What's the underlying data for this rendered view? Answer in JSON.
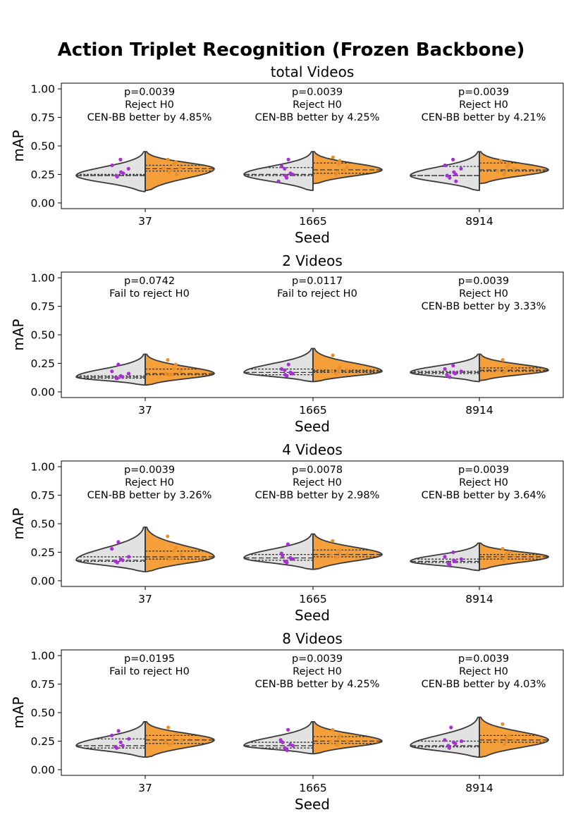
{
  "figure": {
    "suptitle": "Action Triplet Recognition (Frozen Backbone)"
  },
  "colors": {
    "baseline": "#e2e2e2",
    "cenbb": "#f5a03a",
    "baseline_points": "#a62fd6",
    "cenbb_points": "#e8902c",
    "outline": "#3a3a3a"
  },
  "chart_data": [
    {
      "type": "violin",
      "title": "total Videos",
      "xlabel": "Seed",
      "ylabel": "mAP",
      "ylim": [
        -0.05,
        1.05
      ],
      "yticks": [
        0.0,
        0.25,
        0.5,
        0.75,
        1.0
      ],
      "ytick_labels": [
        "0.00",
        "0.25",
        "0.50",
        "0.75",
        "1.00"
      ],
      "categories": [
        "37",
        "1665",
        "8914"
      ],
      "groups": [
        {
          "seed": "37",
          "annotation": [
            "p=0.0039",
            "Reject H0",
            "CEN-BB better by 4.85%"
          ],
          "left": {
            "range": [
              0.1,
              0.45
            ],
            "median": 0.24,
            "q1": 0.24,
            "q3": 0.25,
            "points": [
              0.38,
              0.33,
              0.3,
              0.27,
              0.26,
              0.24,
              0.23
            ]
          },
          "right": {
            "range": [
              0.11,
              0.45
            ],
            "median": 0.3,
            "q1": 0.28,
            "q3": 0.33,
            "points": [
              0.38,
              0.36,
              0.34,
              0.31,
              0.3,
              0.29,
              0.27,
              0.25
            ]
          }
        },
        {
          "seed": "1665",
          "annotation": [
            "p=0.0039",
            "Reject H0",
            "CEN-BB better by 4.25%"
          ],
          "left": {
            "range": [
              0.11,
              0.45
            ],
            "median": 0.25,
            "q1": 0.24,
            "q3": 0.31,
            "points": [
              0.38,
              0.32,
              0.3,
              0.26,
              0.25,
              0.24,
              0.22,
              0.19
            ]
          },
          "right": {
            "range": [
              0.17,
              0.45
            ],
            "median": 0.29,
            "q1": 0.26,
            "q3": 0.35,
            "points": [
              0.4,
              0.37,
              0.34,
              0.31,
              0.29,
              0.27,
              0.25
            ]
          }
        },
        {
          "seed": "8914",
          "annotation": [
            "p=0.0039",
            "Reject H0",
            "CEN-BB better by 4.21%"
          ],
          "left": {
            "range": [
              0.11,
              0.45
            ],
            "median": 0.24,
            "q1": 0.24,
            "q3": 0.32,
            "points": [
              0.38,
              0.33,
              0.3,
              0.27,
              0.25,
              0.24,
              0.22,
              0.19
            ]
          },
          "right": {
            "range": [
              0.17,
              0.45
            ],
            "median": 0.29,
            "q1": 0.28,
            "q3": 0.35,
            "points": [
              0.37,
              0.34,
              0.32,
              0.3,
              0.28,
              0.27,
              0.25
            ]
          }
        }
      ]
    },
    {
      "type": "violin",
      "title": "2 Videos",
      "xlabel": "Seed",
      "ylabel": "mAP",
      "ylim": [
        -0.05,
        1.05
      ],
      "yticks": [
        0.0,
        0.25,
        0.5,
        0.75,
        1.0
      ],
      "ytick_labels": [
        "0.00",
        "0.25",
        "0.50",
        "0.75",
        "1.00"
      ],
      "categories": [
        "37",
        "1665",
        "8914"
      ],
      "groups": [
        {
          "seed": "37",
          "annotation": [
            "p=0.0742",
            "Fail to reject H0"
          ],
          "left": {
            "range": [
              0.06,
              0.33
            ],
            "median": 0.13,
            "q1": 0.12,
            "q3": 0.14,
            "points": [
              0.24,
              0.18,
              0.16,
              0.14,
              0.13,
              0.12,
              0.12
            ]
          },
          "right": {
            "range": [
              0.06,
              0.33
            ],
            "median": 0.16,
            "q1": 0.15,
            "q3": 0.2,
            "points": [
              0.28,
              0.24,
              0.2,
              0.18,
              0.16,
              0.15,
              0.15
            ]
          }
        },
        {
          "seed": "1665",
          "annotation": [
            "p=0.0117",
            "Fail to reject H0"
          ],
          "left": {
            "range": [
              0.09,
              0.38
            ],
            "median": 0.17,
            "q1": 0.15,
            "q3": 0.2,
            "points": [
              0.24,
              0.2,
              0.19,
              0.17,
              0.16,
              0.15,
              0.14
            ]
          },
          "right": {
            "range": [
              0.09,
              0.38
            ],
            "median": 0.18,
            "q1": 0.17,
            "q3": 0.19,
            "points": [
              0.32,
              0.22,
              0.2,
              0.19,
              0.18,
              0.17,
              0.16
            ]
          }
        },
        {
          "seed": "8914",
          "annotation": [
            "p=0.0039",
            "Reject H0",
            "CEN-BB better by 3.33%"
          ],
          "left": {
            "range": [
              0.09,
              0.33
            ],
            "median": 0.17,
            "q1": 0.16,
            "q3": 0.18,
            "points": [
              0.23,
              0.2,
              0.18,
              0.17,
              0.16,
              0.15,
              0.13
            ]
          },
          "right": {
            "range": [
              0.1,
              0.33
            ],
            "median": 0.19,
            "q1": 0.18,
            "q3": 0.21,
            "points": [
              0.28,
              0.22,
              0.21,
              0.2,
              0.19,
              0.18,
              0.17
            ]
          }
        }
      ]
    },
    {
      "type": "violin",
      "title": "4 Videos",
      "xlabel": "Seed",
      "ylabel": "mAP",
      "ylim": [
        -0.05,
        1.05
      ],
      "yticks": [
        0.0,
        0.25,
        0.5,
        0.75,
        1.0
      ],
      "ytick_labels": [
        "0.00",
        "0.25",
        "0.50",
        "0.75",
        "1.00"
      ],
      "categories": [
        "37",
        "1665",
        "8914"
      ],
      "groups": [
        {
          "seed": "37",
          "annotation": [
            "p=0.0039",
            "Reject H0",
            "CEN-BB better by 3.26%"
          ],
          "left": {
            "range": [
              0.08,
              0.47
            ],
            "median": 0.18,
            "q1": 0.17,
            "q3": 0.21,
            "points": [
              0.34,
              0.28,
              0.21,
              0.19,
              0.18,
              0.17,
              0.16
            ]
          },
          "right": {
            "range": [
              0.08,
              0.47
            ],
            "median": 0.21,
            "q1": 0.19,
            "q3": 0.26,
            "points": [
              0.39,
              0.29,
              0.26,
              0.23,
              0.21,
              0.2,
              0.19
            ]
          }
        },
        {
          "seed": "1665",
          "annotation": [
            "p=0.0078",
            "Reject H0",
            "CEN-BB better by 2.98%"
          ],
          "left": {
            "range": [
              0.1,
              0.41
            ],
            "median": 0.2,
            "q1": 0.18,
            "q3": 0.23,
            "points": [
              0.32,
              0.24,
              0.22,
              0.2,
              0.19,
              0.17,
              0.16
            ]
          },
          "right": {
            "range": [
              0.1,
              0.41
            ],
            "median": 0.23,
            "q1": 0.21,
            "q3": 0.27,
            "points": [
              0.35,
              0.27,
              0.25,
              0.23,
              0.22,
              0.21,
              0.2
            ]
          }
        },
        {
          "seed": "8914",
          "annotation": [
            "p=0.0039",
            "Reject H0",
            "CEN-BB better by 3.64%"
          ],
          "left": {
            "range": [
              0.09,
              0.33
            ],
            "median": 0.17,
            "q1": 0.16,
            "q3": 0.19,
            "points": [
              0.25,
              0.21,
              0.19,
              0.18,
              0.17,
              0.15,
              0.14
            ]
          },
          "right": {
            "range": [
              0.1,
              0.33
            ],
            "median": 0.21,
            "q1": 0.19,
            "q3": 0.23,
            "points": [
              0.28,
              0.25,
              0.23,
              0.22,
              0.21,
              0.2,
              0.18
            ]
          }
        }
      ]
    },
    {
      "type": "violin",
      "title": "8 Videos",
      "xlabel": "Seed",
      "ylabel": "mAP",
      "ylim": [
        -0.05,
        1.05
      ],
      "yticks": [
        0.0,
        0.25,
        0.5,
        0.75,
        1.0
      ],
      "ytick_labels": [
        "0.00",
        "0.25",
        "0.50",
        "0.75",
        "1.00"
      ],
      "categories": [
        "37",
        "1665",
        "8914"
      ],
      "groups": [
        {
          "seed": "37",
          "annotation": [
            "p=0.0195",
            "Fail to reject H0"
          ],
          "left": {
            "range": [
              0.11,
              0.42
            ],
            "median": 0.21,
            "q1": 0.19,
            "q3": 0.27,
            "points": [
              0.34,
              0.3,
              0.27,
              0.24,
              0.21,
              0.2,
              0.19
            ]
          },
          "right": {
            "range": [
              0.11,
              0.42
            ],
            "median": 0.26,
            "q1": 0.23,
            "q3": 0.3,
            "points": [
              0.37,
              0.31,
              0.28,
              0.26,
              0.24,
              0.23,
              0.22
            ]
          }
        },
        {
          "seed": "1665",
          "annotation": [
            "p=0.0039",
            "Reject H0",
            "CEN-BB better by 4.25%"
          ],
          "left": {
            "range": [
              0.14,
              0.42
            ],
            "median": 0.21,
            "q1": 0.19,
            "q3": 0.24,
            "points": [
              0.35,
              0.26,
              0.24,
              0.22,
              0.21,
              0.19,
              0.17
            ]
          },
          "right": {
            "range": [
              0.14,
              0.42
            ],
            "median": 0.25,
            "q1": 0.23,
            "q3": 0.29,
            "points": [
              0.35,
              0.3,
              0.27,
              0.25,
              0.24,
              0.23,
              0.22
            ]
          }
        },
        {
          "seed": "8914",
          "annotation": [
            "p=0.0039",
            "Reject H0",
            "CEN-BB better by 4.03%"
          ],
          "left": {
            "range": [
              0.11,
              0.46
            ],
            "median": 0.21,
            "q1": 0.2,
            "q3": 0.25,
            "points": [
              0.37,
              0.26,
              0.25,
              0.24,
              0.23,
              0.21,
              0.19
            ]
          },
          "right": {
            "range": [
              0.11,
              0.46
            ],
            "median": 0.26,
            "q1": 0.24,
            "q3": 0.3,
            "points": [
              0.4,
              0.3,
              0.28,
              0.26,
              0.25,
              0.24,
              0.22
            ]
          }
        }
      ]
    }
  ]
}
